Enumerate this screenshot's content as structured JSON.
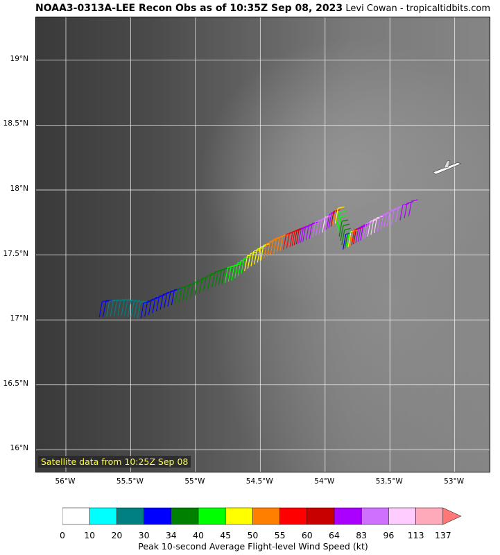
{
  "header": {
    "title": "NOAA3-0313A-LEE Recon Obs as of 10:35Z Sep 08, 2023",
    "credit": "Levi Cowan - tropicaltidbits.com"
  },
  "map": {
    "satellite_label": "Satellite data from 10:25Z Sep 08",
    "lon_range": [
      -56.23,
      -52.72
    ],
    "lat_range": [
      15.82,
      19.33
    ],
    "lat_ticks": [
      "19°N",
      "18.5°N",
      "18°N",
      "17.5°N",
      "17°N",
      "16.5°N",
      "16°N"
    ],
    "lon_ticks": [
      "56°W",
      "55.5°W",
      "55°W",
      "54.5°W",
      "54°W",
      "53.5°W",
      "53°W"
    ],
    "flight_track": [
      {
        "lon": -55.72,
        "lat": 17.14,
        "kt": 32
      },
      {
        "lon": -55.55,
        "lat": 17.15,
        "kt": 22
      },
      {
        "lon": -55.4,
        "lat": 17.13,
        "kt": 30
      },
      {
        "lon": -55.22,
        "lat": 17.21,
        "kt": 32
      },
      {
        "lon": -55.05,
        "lat": 17.27,
        "kt": 36
      },
      {
        "lon": -54.85,
        "lat": 17.37,
        "kt": 37
      },
      {
        "lon": -54.7,
        "lat": 17.42,
        "kt": 42
      },
      {
        "lon": -54.55,
        "lat": 17.53,
        "kt": 47
      },
      {
        "lon": -54.4,
        "lat": 17.62,
        "kt": 52
      },
      {
        "lon": -54.25,
        "lat": 17.68,
        "kt": 57
      },
      {
        "lon": -54.15,
        "lat": 17.72,
        "kt": 68
      },
      {
        "lon": -54.0,
        "lat": 17.79,
        "kt": 100
      },
      {
        "lon": -53.9,
        "lat": 17.86,
        "kt": 45
      },
      {
        "lon": -53.84,
        "lat": 17.66,
        "kt": 32
      },
      {
        "lon": -53.76,
        "lat": 17.7,
        "kt": 62
      },
      {
        "lon": -53.65,
        "lat": 17.76,
        "kt": 100
      },
      {
        "lon": -53.5,
        "lat": 17.84,
        "kt": 90
      },
      {
        "lon": -53.3,
        "lat": 17.93,
        "kt": 70
      }
    ],
    "aircraft_icon": "plane-icon",
    "aircraft": {
      "lon": -53.05,
      "lat": 18.18
    }
  },
  "colorbar": {
    "title": "Peak 10-second Average Flight-level Wind Speed (kt)",
    "labels": [
      "0",
      "10",
      "20",
      "30",
      "34",
      "40",
      "45",
      "50",
      "55",
      "60",
      "64",
      "83",
      "96",
      "113",
      "137"
    ],
    "colors": [
      "#ffffff",
      "#00ffff",
      "#008080",
      "#0000ff",
      "#008000",
      "#00ff00",
      "#ffff00",
      "#ff8000",
      "#ff0000",
      "#c80000",
      "#aa00ff",
      "#d070ff",
      "#ffccff",
      "#ffaabb",
      "#ff7777"
    ]
  }
}
